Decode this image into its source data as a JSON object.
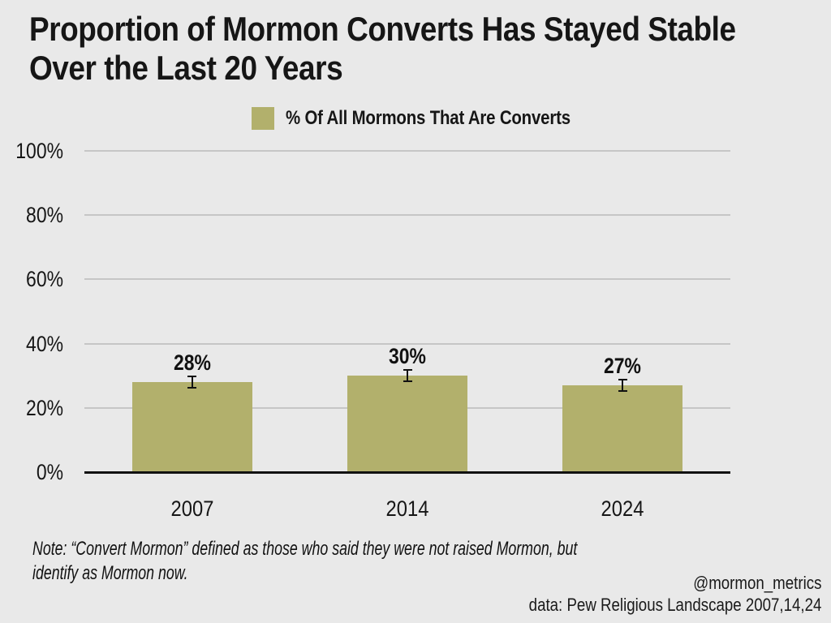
{
  "title_lines": [
    "Proportion of Mormon Converts Has Stayed Stable",
    "Over the Last 20 Years"
  ],
  "note_lines": [
    "Note: “Convert Mormon” defined as those who said they were not raised Mormon, but",
    "identify as Mormon now."
  ],
  "attribution": {
    "handle": "@mormon_metrics",
    "source": "data: Pew Religious Landscape 2007,14,24"
  },
  "colors": {
    "background": "#e9e9e9",
    "bar": "#b2b06c",
    "gridline": "#c6c6c6",
    "axis": "#111111",
    "text": "#161616"
  },
  "chart_data": {
    "type": "bar",
    "title": "Proportion of Mormon Converts Has Stayed Stable Over the Last 20 Years",
    "legend_label": "% Of All Mormons That Are Converts",
    "legend_position": "top-center",
    "categories": [
      "2007",
      "2014",
      "2024"
    ],
    "values": [
      28,
      30,
      27
    ],
    "value_labels": [
      "28%",
      "30%",
      "27%"
    ],
    "error_margin_pct": 2,
    "yticks": [
      0,
      20,
      40,
      60,
      80,
      100
    ],
    "ytick_labels": [
      "0%",
      "20%",
      "40%",
      "60%",
      "80%",
      "100%"
    ],
    "ylim": [
      0,
      100
    ],
    "grid": true,
    "xlabel": "",
    "ylabel": "",
    "note": "Note: “Convert Mormon” defined as those who said they were not raised Mormon, but identify as Mormon now.",
    "bar_color": "#b2b06c"
  }
}
